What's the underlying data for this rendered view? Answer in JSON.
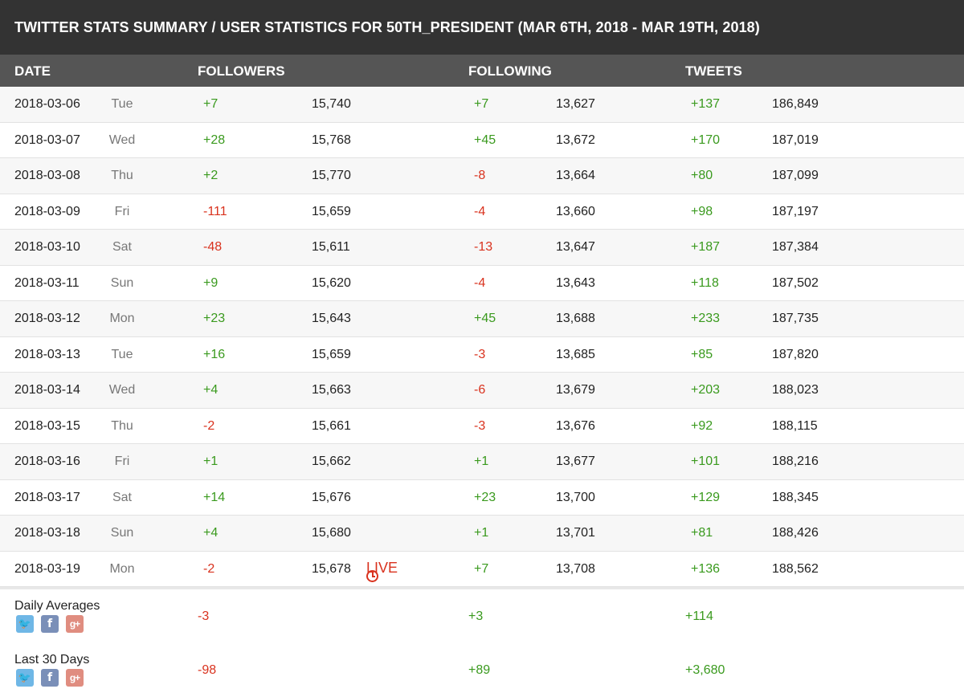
{
  "title": "TWITTER STATS SUMMARY / USER STATISTICS FOR 50TH_PRESIDENT (MAR 6TH, 2018 - MAR 19TH, 2018)",
  "headers": {
    "date": "DATE",
    "followers": "FOLLOWERS",
    "following": "FOLLOWING",
    "tweets": "TWEETS"
  },
  "live_label": "LIVE",
  "colors": {
    "title_bg": "#333333",
    "header_bg": "#555555",
    "positive": "#3a9a1e",
    "negative": "#d9321e"
  },
  "rows": [
    {
      "date": "2018-03-06",
      "day": "Tue",
      "followers_delta": "+7",
      "followers": "15,740",
      "following_delta": "+7",
      "following": "13,627",
      "tweets_delta": "+137",
      "tweets": "186,849"
    },
    {
      "date": "2018-03-07",
      "day": "Wed",
      "followers_delta": "+28",
      "followers": "15,768",
      "following_delta": "+45",
      "following": "13,672",
      "tweets_delta": "+170",
      "tweets": "187,019"
    },
    {
      "date": "2018-03-08",
      "day": "Thu",
      "followers_delta": "+2",
      "followers": "15,770",
      "following_delta": "-8",
      "following": "13,664",
      "tweets_delta": "+80",
      "tweets": "187,099"
    },
    {
      "date": "2018-03-09",
      "day": "Fri",
      "followers_delta": "-111",
      "followers": "15,659",
      "following_delta": "-4",
      "following": "13,660",
      "tweets_delta": "+98",
      "tweets": "187,197"
    },
    {
      "date": "2018-03-10",
      "day": "Sat",
      "followers_delta": "-48",
      "followers": "15,611",
      "following_delta": "-13",
      "following": "13,647",
      "tweets_delta": "+187",
      "tweets": "187,384"
    },
    {
      "date": "2018-03-11",
      "day": "Sun",
      "followers_delta": "+9",
      "followers": "15,620",
      "following_delta": "-4",
      "following": "13,643",
      "tweets_delta": "+118",
      "tweets": "187,502"
    },
    {
      "date": "2018-03-12",
      "day": "Mon",
      "followers_delta": "+23",
      "followers": "15,643",
      "following_delta": "+45",
      "following": "13,688",
      "tweets_delta": "+233",
      "tweets": "187,735"
    },
    {
      "date": "2018-03-13",
      "day": "Tue",
      "followers_delta": "+16",
      "followers": "15,659",
      "following_delta": "-3",
      "following": "13,685",
      "tweets_delta": "+85",
      "tweets": "187,820"
    },
    {
      "date": "2018-03-14",
      "day": "Wed",
      "followers_delta": "+4",
      "followers": "15,663",
      "following_delta": "-6",
      "following": "13,679",
      "tweets_delta": "+203",
      "tweets": "188,023"
    },
    {
      "date": "2018-03-15",
      "day": "Thu",
      "followers_delta": "-2",
      "followers": "15,661",
      "following_delta": "-3",
      "following": "13,676",
      "tweets_delta": "+92",
      "tweets": "188,115"
    },
    {
      "date": "2018-03-16",
      "day": "Fri",
      "followers_delta": "+1",
      "followers": "15,662",
      "following_delta": "+1",
      "following": "13,677",
      "tweets_delta": "+101",
      "tweets": "188,216"
    },
    {
      "date": "2018-03-17",
      "day": "Sat",
      "followers_delta": "+14",
      "followers": "15,676",
      "following_delta": "+23",
      "following": "13,700",
      "tweets_delta": "+129",
      "tweets": "188,345"
    },
    {
      "date": "2018-03-18",
      "day": "Sun",
      "followers_delta": "+4",
      "followers": "15,680",
      "following_delta": "+1",
      "following": "13,701",
      "tweets_delta": "+81",
      "tweets": "188,426"
    },
    {
      "date": "2018-03-19",
      "day": "Mon",
      "followers_delta": "-2",
      "followers": "15,678",
      "following_delta": "+7",
      "following": "13,708",
      "tweets_delta": "+136",
      "tweets": "188,562",
      "live": true
    }
  ],
  "summary": [
    {
      "label": "Daily Averages",
      "followers": "-3",
      "following": "+3",
      "tweets": "+114"
    },
    {
      "label": "Last 30 Days",
      "followers": "-98",
      "following": "+89",
      "tweets": "+3,680"
    }
  ],
  "share_icons": [
    {
      "name": "twitter-share-icon",
      "glyph": "🐦"
    },
    {
      "name": "facebook-share-icon",
      "glyph": "f"
    },
    {
      "name": "google-plus-share-icon",
      "glyph": "g+"
    }
  ]
}
